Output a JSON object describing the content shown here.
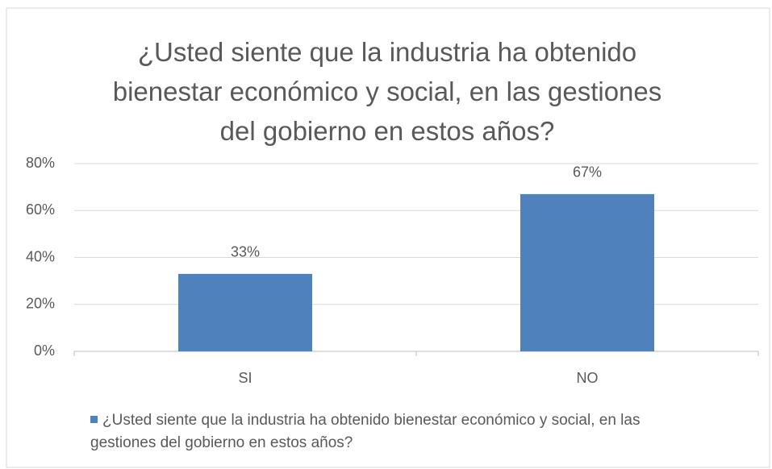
{
  "chart_data": {
    "type": "bar",
    "title": "¿Usted siente que la industria ha obtenido bienestar económico y social, en las gestiones del gobierno en estos años?",
    "categories": [
      "SI",
      "NO"
    ],
    "series": [
      {
        "name": "¿Usted siente que la industria ha obtenido bienestar económico y social, en las gestiones del gobierno en estos años?",
        "color": "#4f81bd",
        "values": [
          33,
          67
        ],
        "value_labels": [
          "33%",
          "67%"
        ]
      }
    ],
    "ylim": [
      0,
      80
    ],
    "yticks": [
      {
        "value": 0,
        "label": "0%"
      },
      {
        "value": 20,
        "label": "20%"
      },
      {
        "value": 40,
        "label": "40%"
      },
      {
        "value": 60,
        "label": "60%"
      },
      {
        "value": 80,
        "label": "80%"
      }
    ],
    "grid": true,
    "legend": "bottom"
  }
}
